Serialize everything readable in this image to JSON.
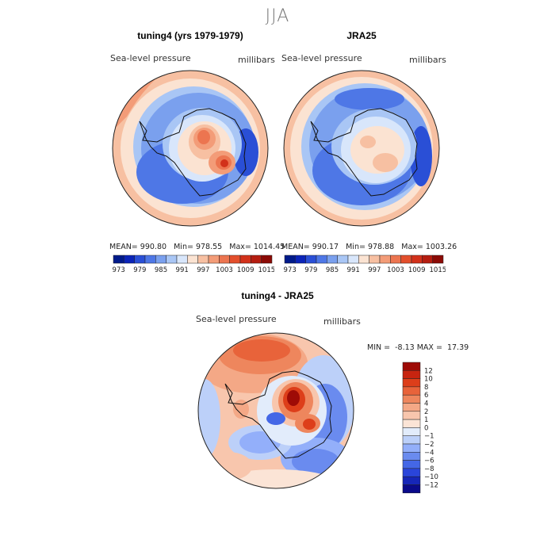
{
  "figure": {
    "season": "JJA"
  },
  "colors": {
    "abs_scale": [
      "#001a8a",
      "#0b24b8",
      "#2a4fd6",
      "#4e77e6",
      "#7aa0ee",
      "#a9c6f5",
      "#d8e6fb",
      "#fbe3d2",
      "#f7c0a2",
      "#f39c78",
      "#ec7550",
      "#e34f2c",
      "#d2311a",
      "#b51d10",
      "#8b0a05"
    ],
    "diff_scale": [
      "#0a0a8a",
      "#1626b8",
      "#2a45da",
      "#4467e6",
      "#6a8bef",
      "#93affa",
      "#bcd0f9",
      "#e2ecfb",
      "#fbe4d6",
      "#f8c6ad",
      "#f4a886",
      "#ee865d",
      "#e8633a",
      "#dd3e1a",
      "#c72410",
      "#9e0b06"
    ]
  },
  "chart_data": [
    {
      "type": "heatmap",
      "projection": "polar-stereographic-south",
      "title": "tuning4 (yrs 1979-1979)",
      "variable": "Sea-level pressure",
      "units": "millibars",
      "stats": {
        "mean": "990.80",
        "min": "978.55",
        "max": "1014.45"
      },
      "colorbar_orientation": "horizontal",
      "colorbar_ticks": [
        "973",
        "979",
        "985",
        "991",
        "997",
        "1003",
        "1009",
        "1015"
      ],
      "levels": [
        973,
        976,
        979,
        982,
        985,
        988,
        991,
        994,
        997,
        1000,
        1003,
        1006,
        1009,
        1012,
        1015
      ]
    },
    {
      "type": "heatmap",
      "projection": "polar-stereographic-south",
      "title": "JRA25",
      "variable": "Sea-level pressure",
      "units": "millibars",
      "stats": {
        "mean": "990.17",
        "min": "978.88",
        "max": "1003.26"
      },
      "colorbar_orientation": "horizontal",
      "colorbar_ticks": [
        "973",
        "979",
        "985",
        "991",
        "997",
        "1003",
        "1009",
        "1015"
      ],
      "levels": [
        973,
        976,
        979,
        982,
        985,
        988,
        991,
        994,
        997,
        1000,
        1003,
        1006,
        1009,
        1012,
        1015
      ]
    },
    {
      "type": "heatmap",
      "projection": "polar-stereographic-south",
      "title": "tuning4 - JRA25",
      "variable": "Sea-level pressure",
      "units": "millibars",
      "stats": {
        "min": "-8.13",
        "max": "17.39"
      },
      "colorbar_orientation": "vertical",
      "colorbar_ticks": [
        "12",
        "10",
        "8",
        "6",
        "4",
        "2",
        "1",
        "0",
        "−1",
        "−2",
        "−4",
        "−6",
        "−8",
        "−10",
        "−12"
      ],
      "levels": [
        -12,
        -10,
        -8,
        -6,
        -4,
        -2,
        -1,
        0,
        1,
        2,
        4,
        6,
        8,
        10,
        12
      ]
    }
  ]
}
